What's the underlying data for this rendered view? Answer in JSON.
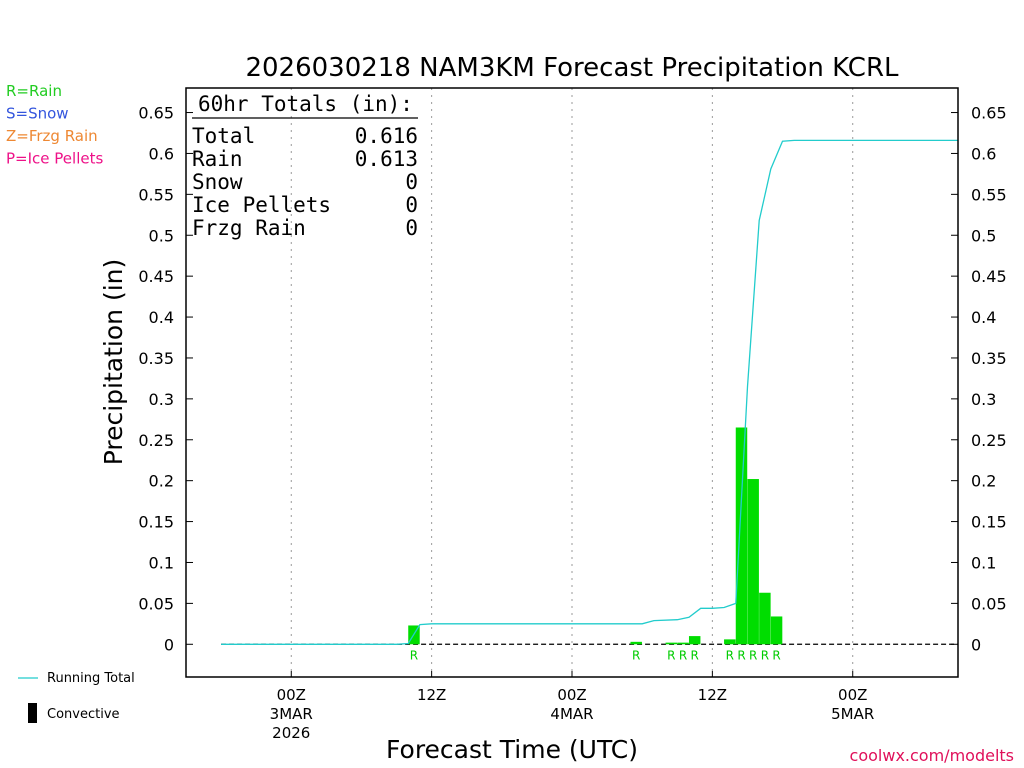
{
  "chart_data": {
    "type": "bar",
    "title": "2026030218 NAM3KM Forecast Precipitation KCRL",
    "xlabel": "Forecast Time (UTC)",
    "ylabel": "Precipitation (in)",
    "ylim": [
      -0.04,
      0.68
    ],
    "yticks": [
      "0.65",
      "0.6",
      "0.55",
      "0.5",
      "0.45",
      "0.4",
      "0.35",
      "0.3",
      "0.25",
      "0.2",
      "0.15",
      "0.1",
      "0.05",
      "0"
    ],
    "x_unit": "hours after 2026-03-02 18Z",
    "xlim": [
      -3,
      63
    ],
    "xticks": [
      {
        "hour": 6,
        "lines": [
          "00Z",
          "3MAR",
          "2026"
        ]
      },
      {
        "hour": 18,
        "lines": [
          "12Z"
        ]
      },
      {
        "hour": 30,
        "lines": [
          "00Z",
          "4MAR"
        ]
      },
      {
        "hour": 42,
        "lines": [
          "12Z"
        ]
      },
      {
        "hour": 54,
        "lines": [
          "00Z",
          "5MAR"
        ]
      }
    ],
    "bars": [
      {
        "hour": 17,
        "value": 0.023,
        "ptype": "R"
      },
      {
        "hour": 36,
        "value": 0.003,
        "ptype": "R"
      },
      {
        "hour": 39,
        "value": 0.002,
        "ptype": "R"
      },
      {
        "hour": 40,
        "value": 0.002,
        "ptype": "R"
      },
      {
        "hour": 41,
        "value": 0.01,
        "ptype": "R"
      },
      {
        "hour": 44,
        "value": 0.006,
        "ptype": "R"
      },
      {
        "hour": 45,
        "value": 0.265,
        "ptype": "R"
      },
      {
        "hour": 46,
        "value": 0.202,
        "ptype": "R"
      },
      {
        "hour": 47,
        "value": 0.063,
        "ptype": "R"
      },
      {
        "hour": 48,
        "value": 0.034,
        "ptype": "R"
      }
    ],
    "running_total": [
      [
        0,
        0
      ],
      [
        15,
        0
      ],
      [
        16,
        0.001
      ],
      [
        17,
        0.024
      ],
      [
        18,
        0.025
      ],
      [
        36,
        0.025
      ],
      [
        37,
        0.029
      ],
      [
        39,
        0.03
      ],
      [
        40,
        0.033
      ],
      [
        41,
        0.044
      ],
      [
        42,
        0.044
      ],
      [
        43,
        0.045
      ],
      [
        44,
        0.05
      ],
      [
        45,
        0.315
      ],
      [
        46,
        0.518
      ],
      [
        47,
        0.581
      ],
      [
        48,
        0.615
      ],
      [
        49,
        0.616
      ],
      [
        63,
        0.616
      ]
    ],
    "totals_box": {
      "header": "60hr Totals (in):",
      "rows": [
        {
          "label": "Total",
          "value": "0.616"
        },
        {
          "label": "Rain",
          "value": "0.613"
        },
        {
          "label": "Snow",
          "value": "0"
        },
        {
          "label": "Ice Pellets",
          "value": "0"
        },
        {
          "label": "Frzg Rain",
          "value": "0"
        }
      ]
    },
    "ptype_legend": [
      {
        "text": "R=Rain",
        "color": "#22cc22"
      },
      {
        "text": "S=Snow",
        "color": "#3355dd"
      },
      {
        "text": "Z=Frzg Rain",
        "color": "#ee8833"
      },
      {
        "text": "P=Ice Pellets",
        "color": "#ee1188"
      }
    ],
    "series_legend": {
      "running_total": "Running Total",
      "convective": "Convective"
    },
    "colors": {
      "bar": "#00dd00",
      "running_total": "#22cccc",
      "rlabel": "#00cc00",
      "credit": "#e0105a"
    },
    "credit": "coolwx.com/modelts"
  }
}
